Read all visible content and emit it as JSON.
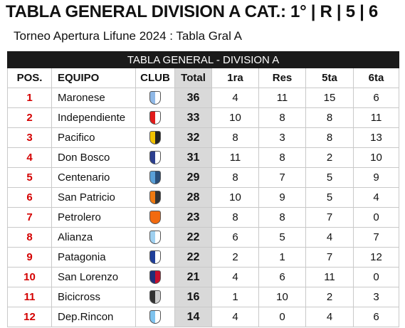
{
  "title": "TABLA GENERAL DIVISION A CAT.: 1° | R | 5 | 6",
  "subtitle": "Torneo Apertura Lifune 2024 : Tabla Gral A",
  "table": {
    "banner": "TABLA GENERAL - DIVISION A",
    "headers": {
      "pos": "POS.",
      "equipo": "EQUIPO",
      "club": "CLUB",
      "total": "Total",
      "c1": "1ra",
      "c2": "Res",
      "c3": "5ta",
      "c4": "6ta"
    },
    "rows": [
      {
        "pos": "1",
        "team": "Maronese",
        "total": "36",
        "c1": "4",
        "c2": "11",
        "c3": "15",
        "c4": "6",
        "crest_icon": "maronese-crest-icon",
        "crest_colors": [
          "#8fb8e6",
          "#ffffff"
        ]
      },
      {
        "pos": "2",
        "team": "Independiente",
        "total": "33",
        "c1": "10",
        "c2": "8",
        "c3": "8",
        "c4": "11",
        "crest_icon": "independiente-crest-icon",
        "crest_colors": [
          "#e21b1b",
          "#ffffff"
        ]
      },
      {
        "pos": "3",
        "team": "Pacifico",
        "total": "32",
        "c1": "8",
        "c2": "3",
        "c3": "8",
        "c4": "13",
        "crest_icon": "pacifico-crest-icon",
        "crest_colors": [
          "#f2c200",
          "#222222"
        ]
      },
      {
        "pos": "4",
        "team": "Don Bosco",
        "total": "31",
        "c1": "11",
        "c2": "8",
        "c3": "2",
        "c4": "10",
        "crest_icon": "don-bosco-crest-icon",
        "crest_colors": [
          "#2c3f8f",
          "#ffffff"
        ]
      },
      {
        "pos": "5",
        "team": "Centenario",
        "total": "29",
        "c1": "8",
        "c2": "7",
        "c3": "5",
        "c4": "9",
        "crest_icon": "centenario-crest-icon",
        "crest_colors": [
          "#5aa0d8",
          "#2a4f7a"
        ]
      },
      {
        "pos": "6",
        "team": "San Patricio",
        "total": "28",
        "c1": "10",
        "c2": "9",
        "c3": "5",
        "c4": "4",
        "crest_icon": "san-patricio-crest-icon",
        "crest_colors": [
          "#f07a10",
          "#333333"
        ]
      },
      {
        "pos": "7",
        "team": "Petrolero",
        "total": "23",
        "c1": "8",
        "c2": "8",
        "c3": "7",
        "c4": "0",
        "crest_icon": "petrolero-crest-icon",
        "crest_colors": [
          "#f26a0f",
          "#f26a0f"
        ]
      },
      {
        "pos": "8",
        "team": "Alianza",
        "total": "22",
        "c1": "6",
        "c2": "5",
        "c3": "4",
        "c4": "7",
        "crest_icon": "alianza-crest-icon",
        "crest_colors": [
          "#9fd0f0",
          "#ffffff"
        ]
      },
      {
        "pos": "9",
        "team": "Patagonia",
        "total": "22",
        "c1": "2",
        "c2": "1",
        "c3": "7",
        "c4": "12",
        "crest_icon": "patagonia-crest-icon",
        "crest_colors": [
          "#1f3f9a",
          "#ffffff"
        ]
      },
      {
        "pos": "10",
        "team": "San Lorenzo",
        "total": "21",
        "c1": "4",
        "c2": "6",
        "c3": "11",
        "c4": "0",
        "crest_icon": "san-lorenzo-crest-icon",
        "crest_colors": [
          "#1f2f7a",
          "#c8102e"
        ]
      },
      {
        "pos": "11",
        "team": "Bicicross",
        "total": "16",
        "c1": "1",
        "c2": "10",
        "c3": "2",
        "c4": "3",
        "crest_icon": "bicicross-crest-icon",
        "crest_colors": [
          "#333333",
          "#cfcfcf"
        ]
      },
      {
        "pos": "12",
        "team": "Dep.Rincon",
        "total": "14",
        "c1": "4",
        "c2": "0",
        "c3": "4",
        "c4": "6",
        "crest_icon": "dep-rincon-crest-icon",
        "crest_colors": [
          "#7fc3ee",
          "#ffffff"
        ]
      }
    ]
  }
}
